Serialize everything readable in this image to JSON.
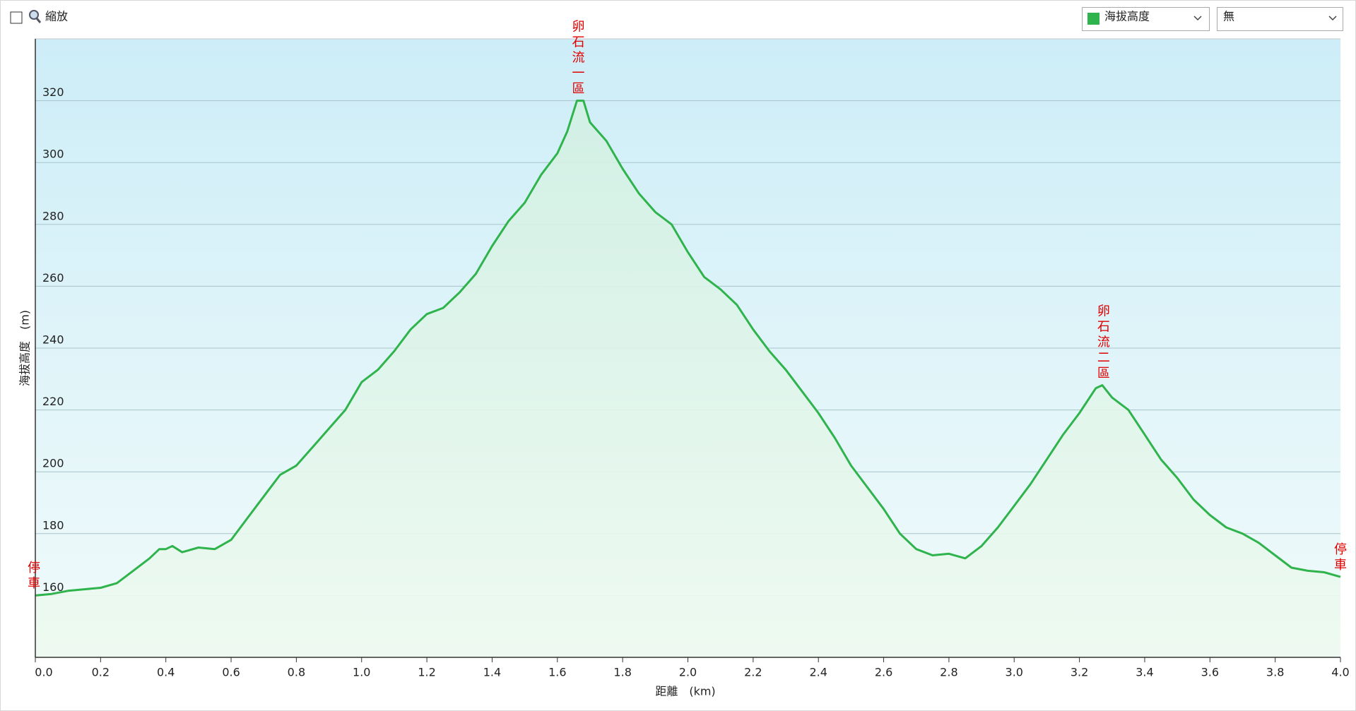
{
  "controls": {
    "zoom_label": "縮放",
    "overlay_select": "無"
  },
  "chart_data": {
    "type": "area",
    "x_label": "距離　(km)",
    "y_label": "海拔高度　(m)",
    "x": [
      0.0,
      0.05,
      0.1,
      0.15,
      0.2,
      0.25,
      0.3,
      0.35,
      0.38,
      0.4,
      0.42,
      0.45,
      0.5,
      0.55,
      0.6,
      0.65,
      0.7,
      0.75,
      0.8,
      0.85,
      0.9,
      0.95,
      1.0,
      1.05,
      1.1,
      1.15,
      1.2,
      1.25,
      1.3,
      1.35,
      1.4,
      1.45,
      1.5,
      1.55,
      1.6,
      1.63,
      1.66,
      1.68,
      1.7,
      1.75,
      1.8,
      1.85,
      1.9,
      1.95,
      2.0,
      2.05,
      2.1,
      2.15,
      2.2,
      2.25,
      2.3,
      2.35,
      2.4,
      2.45,
      2.5,
      2.55,
      2.6,
      2.65,
      2.7,
      2.75,
      2.8,
      2.85,
      2.9,
      2.95,
      3.0,
      3.05,
      3.1,
      3.15,
      3.2,
      3.25,
      3.27,
      3.3,
      3.35,
      3.4,
      3.45,
      3.5,
      3.55,
      3.6,
      3.65,
      3.7,
      3.75,
      3.8,
      3.85,
      3.9,
      3.95,
      4.0
    ],
    "series": [
      {
        "name": "海拔高度",
        "color": "#2fb34c",
        "values": [
          160,
          160.5,
          161.5,
          162,
          162.5,
          164,
          168,
          172,
          175,
          175,
          176,
          174,
          175.5,
          175,
          178,
          185,
          192,
          199,
          202,
          208,
          214,
          220,
          229,
          233,
          239,
          246,
          251,
          253,
          258,
          264,
          273,
          281,
          287,
          296,
          303,
          310,
          320,
          320,
          313,
          307,
          298,
          290,
          284,
          280,
          271,
          263,
          259,
          254,
          246,
          239,
          233,
          226,
          219,
          211,
          202,
          195,
          188,
          180,
          175,
          173,
          173.5,
          172,
          176,
          182,
          189,
          196,
          204,
          212,
          219,
          227,
          228,
          224,
          220,
          212,
          204,
          198,
          191,
          186,
          182,
          180,
          177,
          173,
          169,
          168,
          167.5,
          166
        ]
      }
    ],
    "annotations": [
      {
        "text": "停車",
        "x": 0.0,
        "y": 160
      },
      {
        "text": "卵石流一區",
        "x": 1.66,
        "y": 320
      },
      {
        "text": "卵石流二區",
        "x": 3.27,
        "y": 228
      },
      {
        "text": "停車",
        "x": 4.0,
        "y": 166
      }
    ],
    "annotation_color": "#e00000",
    "xlim": [
      0,
      4.0
    ],
    "ylim": [
      140,
      340
    ],
    "xticks": [
      {
        "value": 0,
        "label": "0.0"
      },
      0.2,
      0.4,
      0.6,
      0.8,
      {
        "value": 1,
        "label": "1.0"
      },
      1.2,
      1.4,
      1.6,
      1.8,
      {
        "value": 2,
        "label": "2.0"
      },
      2.2,
      2.4,
      2.6,
      2.8,
      {
        "value": 3,
        "label": "3.0"
      },
      3.2,
      3.4,
      3.6,
      3.8,
      {
        "value": 4,
        "label": "4.0"
      }
    ],
    "yticks": [
      160,
      180,
      200,
      220,
      240,
      260,
      280,
      300,
      320
    ],
    "grid": true
  }
}
